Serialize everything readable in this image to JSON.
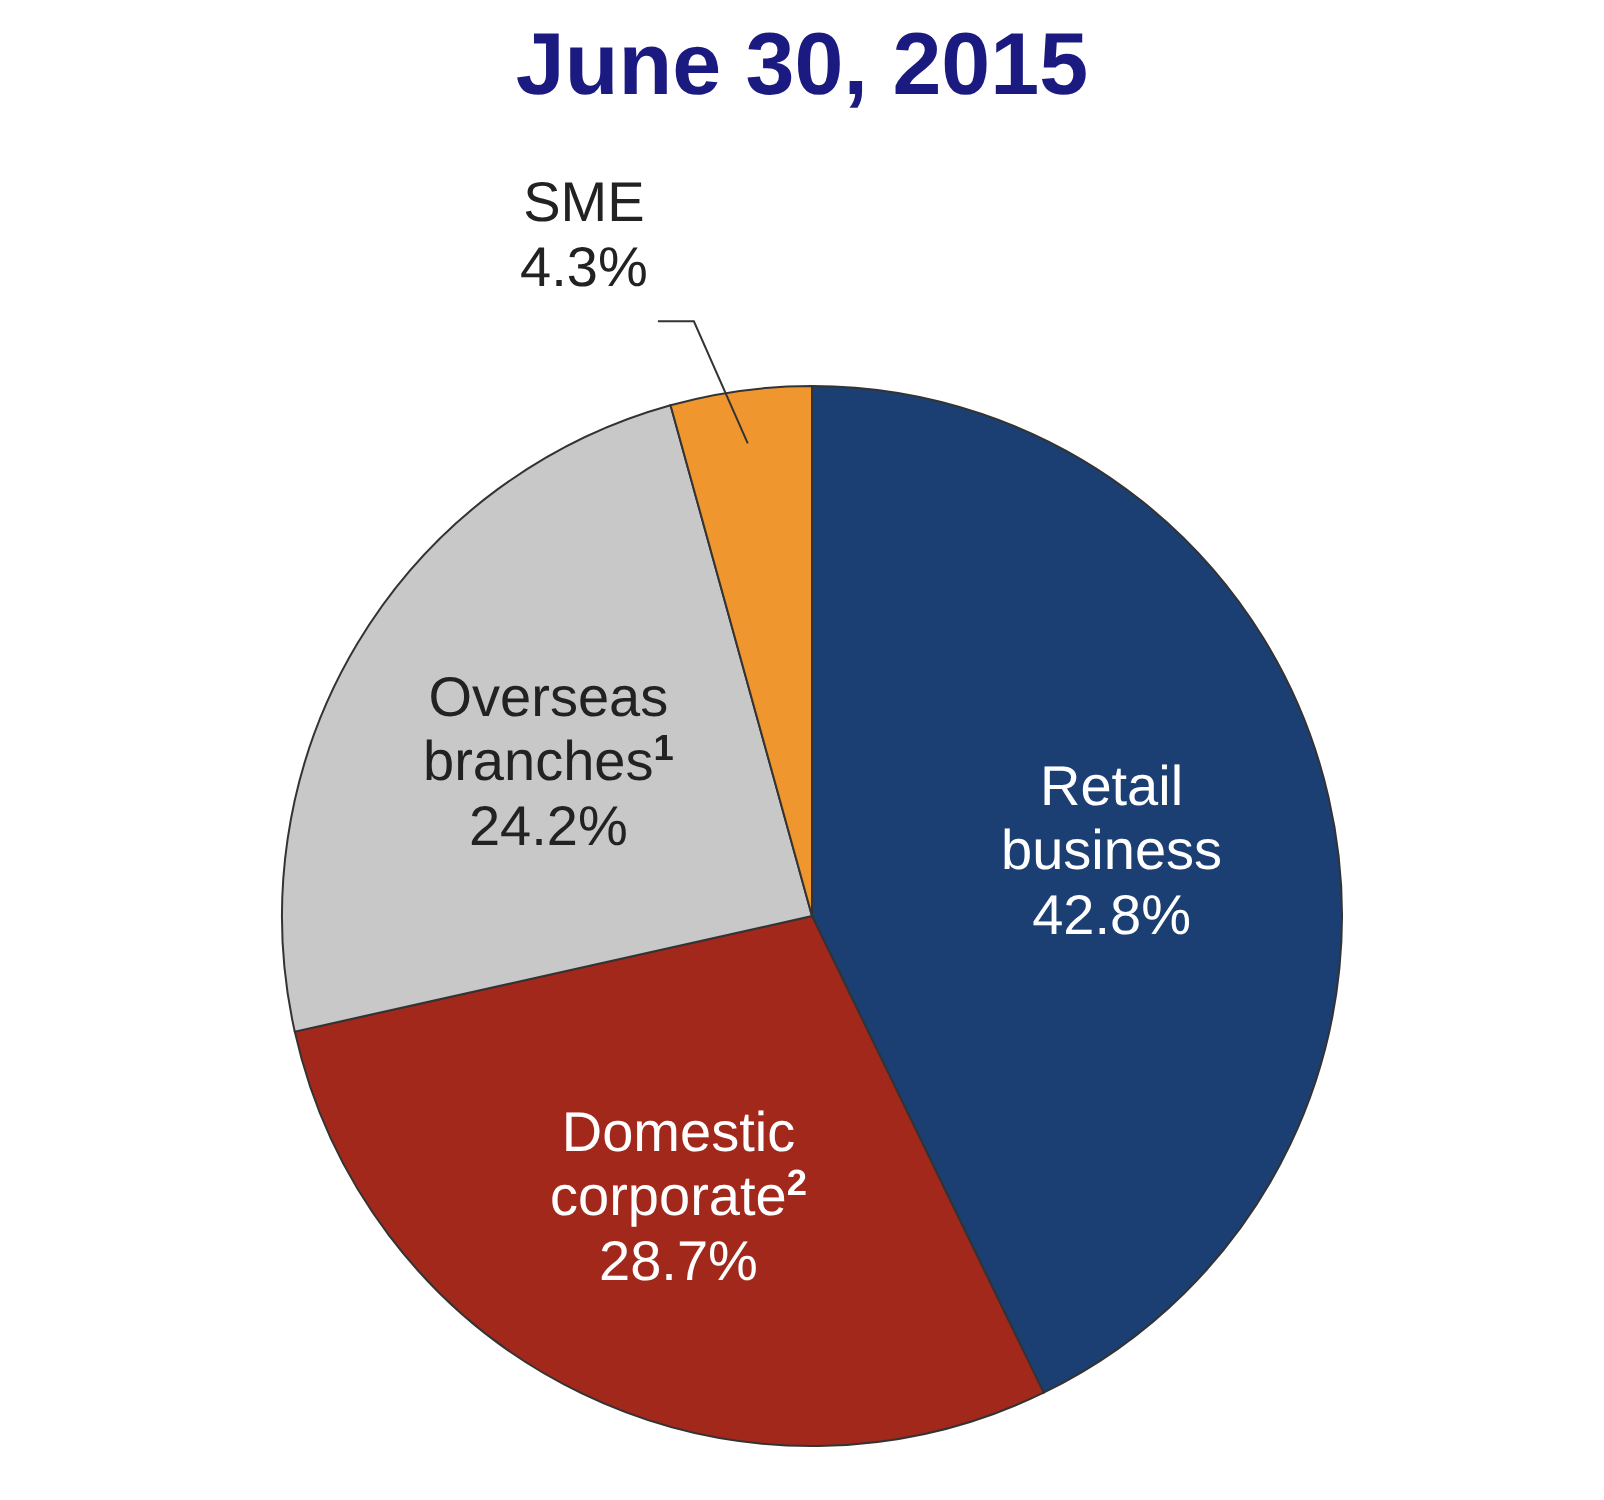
{
  "chart_data": {
    "type": "pie",
    "title": "June 30, 2015",
    "categories": [
      "Retail business",
      "Domestic corporate$^{2}$",
      "Overseas branches$^{1}$",
      "SME"
    ],
    "values": [
      42.8,
      28.7,
      24.2,
      4.3
    ],
    "colors": [
      "#1c3f73",
      "#a3281c",
      "#c8c8c8",
      "#f0962f"
    ],
    "value_labels": [
      "42.8%",
      "28.7%",
      "24.2%",
      "4.3%"
    ],
    "legend": false
  }
}
